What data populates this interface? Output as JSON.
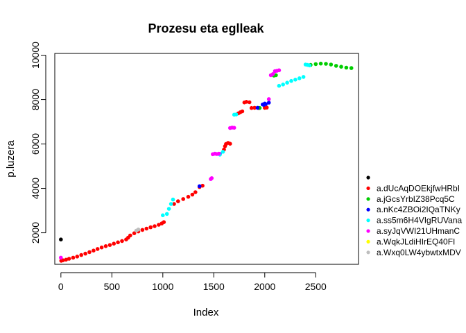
{
  "chart_data": {
    "type": "scatter",
    "title": "Prozesu eta eglleak",
    "xlabel": "Index",
    "ylabel": "p.luzera",
    "xlim": [
      -60,
      2920
    ],
    "ylim": [
      580,
      10080
    ],
    "xticks": [
      0,
      500,
      1000,
      1500,
      2000,
      2500
    ],
    "yticks": [
      2000,
      4000,
      6000,
      8000,
      10000
    ],
    "grid": false,
    "legend_position": "right",
    "series": [
      {
        "name": "",
        "color": "#000000",
        "points": [
          [
            0,
            1700
          ]
        ]
      },
      {
        "name": "a.dUcAqDOEkjfwHRbI",
        "color": "#ff0000",
        "points": [
          [
            3,
            740
          ],
          [
            20,
            760
          ],
          [
            50,
            790
          ],
          [
            80,
            830
          ],
          [
            120,
            880
          ],
          [
            160,
            930
          ],
          [
            200,
            1000
          ],
          [
            240,
            1060
          ],
          [
            280,
            1130
          ],
          [
            320,
            1200
          ],
          [
            360,
            1270
          ],
          [
            400,
            1340
          ],
          [
            440,
            1400
          ],
          [
            480,
            1450
          ],
          [
            520,
            1510
          ],
          [
            560,
            1570
          ],
          [
            600,
            1630
          ],
          [
            640,
            1700
          ],
          [
            660,
            1780
          ],
          [
            680,
            1880
          ],
          [
            720,
            1980
          ],
          [
            760,
            2060
          ],
          [
            800,
            2130
          ],
          [
            840,
            2190
          ],
          [
            880,
            2250
          ],
          [
            920,
            2300
          ],
          [
            960,
            2360
          ],
          [
            990,
            2420
          ],
          [
            1010,
            2480
          ],
          [
            1110,
            3300
          ],
          [
            1150,
            3420
          ],
          [
            1200,
            3520
          ],
          [
            1250,
            3620
          ],
          [
            1290,
            3720
          ],
          [
            1320,
            3830
          ],
          [
            1360,
            4060
          ],
          [
            1390,
            4120
          ],
          [
            1600,
            5750
          ],
          [
            1610,
            5900
          ],
          [
            1620,
            6000
          ],
          [
            1640,
            6050
          ],
          [
            1660,
            6010
          ],
          [
            1740,
            7380
          ],
          [
            1760,
            7430
          ],
          [
            1780,
            7470
          ],
          [
            1800,
            7870
          ],
          [
            1820,
            7900
          ],
          [
            1850,
            7880
          ],
          [
            1870,
            7620
          ],
          [
            1900,
            7630
          ],
          [
            1940,
            7620
          ],
          [
            2000,
            7630
          ],
          [
            2020,
            7640
          ]
        ]
      },
      {
        "name": "a.jGcsYrbIZ38Pcq5C",
        "color": "#00cd00",
        "points": [
          [
            1950,
            7620
          ],
          [
            2090,
            9080
          ],
          [
            2110,
            9100
          ],
          [
            2450,
            9560
          ],
          [
            2500,
            9600
          ],
          [
            2550,
            9620
          ],
          [
            2600,
            9610
          ],
          [
            2650,
            9580
          ],
          [
            2700,
            9520
          ],
          [
            2750,
            9480
          ],
          [
            2800,
            9440
          ],
          [
            2850,
            9420
          ]
        ]
      },
      {
        "name": "a.nKc4ZBOi2IQaTNKy",
        "color": "#0000ff",
        "points": [
          [
            1360,
            4100
          ],
          [
            1560,
            5550
          ],
          [
            1930,
            7630
          ],
          [
            1980,
            7780
          ],
          [
            1990,
            7760
          ],
          [
            2000,
            7820
          ],
          [
            2010,
            7800
          ],
          [
            2040,
            7860
          ]
        ]
      },
      {
        "name": "a.ss5m6H4VIgRUVana",
        "color": "#00ffff",
        "points": [
          [
            1000,
            2790
          ],
          [
            1040,
            2850
          ],
          [
            1060,
            3080
          ],
          [
            1080,
            3300
          ],
          [
            1100,
            3500
          ],
          [
            1560,
            5520
          ],
          [
            1590,
            5650
          ],
          [
            1700,
            7320
          ],
          [
            1720,
            7330
          ],
          [
            2140,
            8620
          ],
          [
            2180,
            8680
          ],
          [
            2220,
            8760
          ],
          [
            2260,
            8840
          ],
          [
            2300,
            8900
          ],
          [
            2340,
            8960
          ],
          [
            2380,
            9020
          ],
          [
            2400,
            9580
          ],
          [
            2420,
            9560
          ],
          [
            2440,
            9540
          ]
        ]
      },
      {
        "name": "a.syJqVWI21UHmanC",
        "color": "#ff00ff",
        "points": [
          [
            0,
            880
          ],
          [
            1470,
            4420
          ],
          [
            1480,
            4460
          ],
          [
            1490,
            5540
          ],
          [
            1510,
            5560
          ],
          [
            1530,
            5550
          ],
          [
            1550,
            5560
          ],
          [
            1660,
            6720
          ],
          [
            1680,
            6740
          ],
          [
            1700,
            6730
          ],
          [
            2040,
            8020
          ],
          [
            2060,
            9100
          ],
          [
            2080,
            9150
          ],
          [
            2100,
            9280
          ],
          [
            2120,
            9300
          ],
          [
            2140,
            9320
          ]
        ]
      },
      {
        "name": "a.WqkJLdiHIrEQ40FI",
        "color": "#ffff00",
        "points": []
      },
      {
        "name": "a.Wxq0LW4ybwtxMDV",
        "color": "#bebebe",
        "points": [
          [
            740,
            2100
          ],
          [
            760,
            2150
          ]
        ]
      }
    ]
  }
}
